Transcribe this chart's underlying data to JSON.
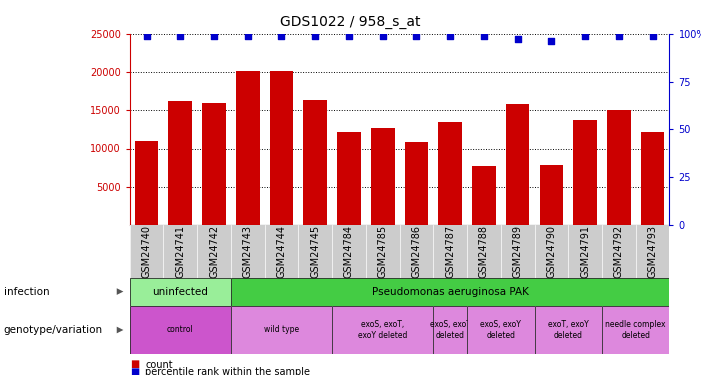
{
  "title": "GDS1022 / 958_s_at",
  "samples": [
    "GSM24740",
    "GSM24741",
    "GSM24742",
    "GSM24743",
    "GSM24744",
    "GSM24745",
    "GSM24784",
    "GSM24785",
    "GSM24786",
    "GSM24787",
    "GSM24788",
    "GSM24789",
    "GSM24790",
    "GSM24791",
    "GSM24792",
    "GSM24793"
  ],
  "counts": [
    11000,
    16200,
    15900,
    20100,
    20100,
    16300,
    12100,
    12700,
    10800,
    13500,
    7700,
    15800,
    7900,
    13700,
    15000,
    12200
  ],
  "percentile_ranks": [
    99,
    99,
    99,
    99,
    99,
    99,
    99,
    99,
    99,
    99,
    99,
    97,
    96,
    99,
    99,
    99
  ],
  "bar_color": "#cc0000",
  "dot_color": "#0000cc",
  "ylim_left": [
    0,
    25000
  ],
  "ylim_right": [
    0,
    100
  ],
  "yticks_left": [
    5000,
    10000,
    15000,
    20000,
    25000
  ],
  "yticks_right": [
    0,
    25,
    50,
    75,
    100
  ],
  "infection_groups": [
    {
      "label": "uninfected",
      "start": 0,
      "end": 3,
      "bg": "#99ee99"
    },
    {
      "label": "Pseudomonas aeruginosa PAK",
      "start": 3,
      "end": 16,
      "bg": "#44cc44"
    }
  ],
  "genotype_groups": [
    {
      "label": "control",
      "start": 0,
      "end": 3,
      "bg": "#cc55cc"
    },
    {
      "label": "wild type",
      "start": 3,
      "end": 6,
      "bg": "#dd88dd"
    },
    {
      "label": "exoS, exoT,\nexoY deleted",
      "start": 6,
      "end": 9,
      "bg": "#dd88dd"
    },
    {
      "label": "exoS, exoT\ndeleted",
      "start": 9,
      "end": 10,
      "bg": "#dd88dd"
    },
    {
      "label": "exoS, exoY\ndeleted",
      "start": 10,
      "end": 12,
      "bg": "#dd88dd"
    },
    {
      "label": "exoT, exoY\ndeleted",
      "start": 12,
      "end": 14,
      "bg": "#dd88dd"
    },
    {
      "label": "needle complex\ndeleted",
      "start": 14,
      "end": 16,
      "bg": "#dd88dd"
    }
  ],
  "legend_count_color": "#cc0000",
  "legend_dot_color": "#0000cc",
  "infection_label": "infection",
  "genotype_label": "genotype/variation",
  "legend_count_text": "count",
  "legend_percentile_text": "percentile rank within the sample",
  "axis_color": "#cc0000",
  "right_axis_color": "#0000cc",
  "title_fontsize": 10,
  "tick_fontsize": 7,
  "label_fontsize": 7.5,
  "xtick_bg": "#cccccc",
  "n_samples": 16
}
